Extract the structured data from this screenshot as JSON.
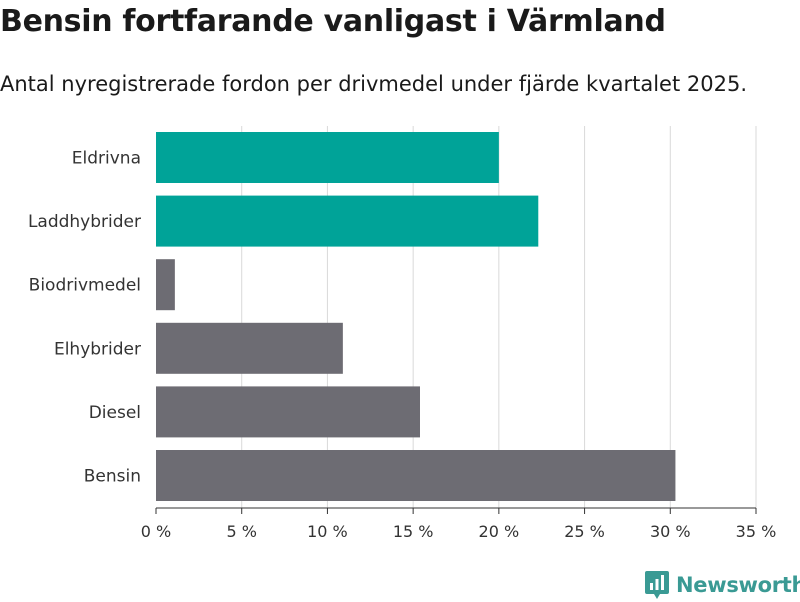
{
  "header": {
    "title": "Bensin fortfarande vanligast i Värmland",
    "subtitle": "Antal nyregistrerade fordon per drivmedel under fjärde kvartalet 2025."
  },
  "chart_data": {
    "type": "bar",
    "orientation": "horizontal",
    "categories": [
      "Eldrivna",
      "Laddhybrider",
      "Biodrivmedel",
      "Elhybrider",
      "Diesel",
      "Bensin"
    ],
    "values": [
      20.0,
      22.3,
      1.1,
      10.9,
      15.4,
      30.3
    ],
    "colors": [
      "#00a398",
      "#00a398",
      "#6d6c73",
      "#6d6c73",
      "#6d6c73",
      "#6d6c73"
    ],
    "xlim": [
      0,
      35
    ],
    "ticks": [
      0,
      5,
      10,
      15,
      20,
      25,
      30,
      35
    ],
    "tick_labels": [
      "0 %",
      "5 %",
      "10 %",
      "15 %",
      "20 %",
      "25 %",
      "30 %",
      "35 %"
    ],
    "grid": true,
    "title": "Bensin fortfarande vanligast i Värmland",
    "xlabel": "",
    "ylabel": ""
  },
  "branding": {
    "name": "Newsworthy",
    "color": "#3a9a94",
    "icon": "newsworthy-logo-icon"
  }
}
